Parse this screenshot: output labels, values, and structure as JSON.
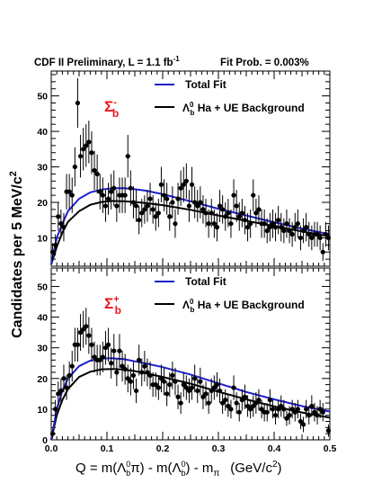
{
  "header": {
    "left": "CDF II Preliminary, L = 1.1 fb",
    "left_sup": "-1",
    "right": "Fit Prob. = 0.003%"
  },
  "axes": {
    "ylabel": "Candidates per 5 MeV/c",
    "ylabel_sup": "2",
    "xlabel": "Q = m(Λ₀ᵇπ) - m(Λ₀ᵇ) - m",
    "xlabel_pre": "Q = m(Λ",
    "xlabel_mid1": "π) - m(Λ",
    "xlabel_mid2": ") - m",
    "xlabel_sub_pi": "π",
    "xlabel_units": "(GeV/c",
    "xlabel_units_sup": "2",
    "xlabel_units_end": ")",
    "lambda_sub": "b",
    "lambda_sup": "0"
  },
  "colors": {
    "total_fit": "#1f1fcc",
    "background": "#000000",
    "signal_label": "#e8161b"
  },
  "chart_data": [
    {
      "type": "scatter",
      "panel": "top",
      "signal_label": "Σ",
      "signal_sub": "b",
      "signal_sup": "-",
      "legend": [
        "Total Fit",
        "Ha + UE Background"
      ],
      "xlim": [
        0,
        0.5
      ],
      "ylim": [
        2,
        57
      ],
      "yticks": [
        10,
        20,
        30,
        40,
        50
      ],
      "series": [
        {
          "name": "Data",
          "x": [
            0.0025,
            0.0075,
            0.0125,
            0.0175,
            0.0225,
            0.0275,
            0.0325,
            0.0375,
            0.0425,
            0.0475,
            0.0525,
            0.0575,
            0.0625,
            0.0675,
            0.0725,
            0.0775,
            0.0825,
            0.0875,
            0.0925,
            0.0975,
            0.1025,
            0.1075,
            0.1125,
            0.1175,
            0.1225,
            0.1275,
            0.1325,
            0.1375,
            0.1425,
            0.1475,
            0.1525,
            0.1575,
            0.1625,
            0.1675,
            0.1725,
            0.1775,
            0.1825,
            0.1875,
            0.1925,
            0.1975,
            0.2025,
            0.2075,
            0.2125,
            0.2175,
            0.2225,
            0.2275,
            0.2325,
            0.2375,
            0.2425,
            0.2475,
            0.2525,
            0.2575,
            0.2625,
            0.2675,
            0.2725,
            0.2775,
            0.2825,
            0.2875,
            0.2925,
            0.2975,
            0.3025,
            0.3075,
            0.3125,
            0.3175,
            0.3225,
            0.3275,
            0.3325,
            0.3375,
            0.3425,
            0.3475,
            0.3525,
            0.3575,
            0.3625,
            0.3675,
            0.3725,
            0.3775,
            0.3825,
            0.3875,
            0.3925,
            0.3975,
            0.4025,
            0.4075,
            0.4125,
            0.4175,
            0.4225,
            0.4275,
            0.4325,
            0.4375,
            0.4425,
            0.4475,
            0.4525,
            0.4575,
            0.4625,
            0.4675,
            0.4725,
            0.4775,
            0.4825,
            0.4875,
            0.4925,
            0.4975
          ],
          "y": [
            6,
            8,
            16,
            14,
            13,
            23,
            23,
            22,
            30,
            48,
            33,
            35,
            36,
            37,
            34,
            29,
            28,
            23,
            22,
            19,
            21,
            23,
            24,
            19,
            22,
            22,
            22,
            33,
            24,
            20,
            19,
            15,
            17,
            18,
            19,
            21,
            18,
            16,
            17,
            25,
            22,
            21,
            16,
            20,
            14,
            21,
            24,
            25,
            26,
            19,
            25,
            20,
            19,
            20,
            18,
            17,
            14,
            17,
            14,
            13,
            19,
            18,
            16,
            17,
            14,
            22,
            19,
            16,
            17,
            15,
            13,
            14,
            22,
            17,
            18,
            14,
            14,
            12,
            13,
            14,
            13,
            15,
            13,
            12,
            14,
            12,
            11,
            13,
            14,
            10,
            12,
            13,
            11,
            10,
            11,
            11,
            10,
            6,
            11,
            10
          ],
          "yerr": [
            2.5,
            3,
            4,
            4,
            4,
            5,
            5,
            5,
            5.5,
            7,
            6,
            6,
            6,
            6,
            6,
            5.5,
            5.5,
            5,
            5,
            4.5,
            4.5,
            5,
            5,
            4.5,
            5,
            5,
            5,
            6,
            5,
            4.5,
            4.5,
            4,
            4,
            4,
            4.5,
            4.5,
            4,
            4,
            4,
            5,
            4.5,
            4.5,
            4,
            4.5,
            4,
            4.5,
            5,
            5,
            5,
            4.5,
            5,
            4.5,
            4.5,
            4.5,
            4,
            4,
            4,
            4,
            4,
            4,
            4.5,
            4,
            4,
            4,
            4,
            4.5,
            4.5,
            4,
            4,
            4,
            4,
            4,
            4.5,
            4,
            4,
            4,
            4,
            3.5,
            4,
            4,
            4,
            4,
            4,
            3.5,
            4,
            3.5,
            3.5,
            4,
            4,
            3.5,
            3.5,
            4,
            3.5,
            3.5,
            3.5,
            3.5,
            3.5,
            2.5,
            3.5,
            3.5
          ]
        },
        {
          "name": "Total Fit",
          "x": [
            0,
            0.01,
            0.02,
            0.03,
            0.05,
            0.07,
            0.09,
            0.11,
            0.13,
            0.15,
            0.17,
            0.2,
            0.25,
            0.3,
            0.35,
            0.4,
            0.45,
            0.5
          ],
          "y": [
            2.5,
            10,
            14,
            17.5,
            21,
            22.8,
            23.6,
            24,
            24,
            23.7,
            23.3,
            22.3,
            20.3,
            18.2,
            16.3,
            14.4,
            12.6,
            11
          ]
        },
        {
          "name": "Ha + UE Background",
          "x": [
            0,
            0.01,
            0.02,
            0.03,
            0.05,
            0.07,
            0.09,
            0.11,
            0.13,
            0.15,
            0.17,
            0.2,
            0.25,
            0.3,
            0.35,
            0.4,
            0.45,
            0.5
          ],
          "y": [
            2.5,
            7.5,
            11.5,
            14.5,
            17.5,
            19.3,
            20.1,
            20.4,
            20.3,
            20.1,
            19.8,
            19.2,
            17.9,
            16.3,
            14.8,
            13.3,
            11.8,
            10.4
          ]
        }
      ]
    },
    {
      "type": "scatter",
      "panel": "bottom",
      "signal_label": "Σ",
      "signal_sub": "b",
      "signal_sup": "+",
      "legend": [
        "Total Fit",
        "Ha + UE Background"
      ],
      "xlim": [
        0,
        0.5
      ],
      "xticks": [
        "0.0",
        "0.1",
        "0.2",
        "0.3",
        "0.4",
        "0.5"
      ],
      "ylim": [
        0,
        56
      ],
      "yticks": [
        0,
        10,
        20,
        30,
        40,
        50
      ],
      "series": [
        {
          "name": "Data",
          "x": [
            0.0025,
            0.0075,
            0.0125,
            0.0175,
            0.0225,
            0.0275,
            0.0325,
            0.0375,
            0.0425,
            0.0475,
            0.0525,
            0.0575,
            0.0625,
            0.0675,
            0.0725,
            0.0775,
            0.0825,
            0.0875,
            0.0925,
            0.0975,
            0.1025,
            0.1075,
            0.1125,
            0.1175,
            0.1225,
            0.1275,
            0.1325,
            0.1375,
            0.1425,
            0.1475,
            0.1525,
            0.1575,
            0.1625,
            0.1675,
            0.1725,
            0.1775,
            0.1825,
            0.1875,
            0.1925,
            0.1975,
            0.2025,
            0.2075,
            0.2125,
            0.2175,
            0.2225,
            0.2275,
            0.2325,
            0.2375,
            0.2425,
            0.2475,
            0.2525,
            0.2575,
            0.2625,
            0.2675,
            0.2725,
            0.2775,
            0.2825,
            0.2875,
            0.2925,
            0.2975,
            0.3025,
            0.3075,
            0.3125,
            0.3175,
            0.3225,
            0.3275,
            0.3325,
            0.3375,
            0.3425,
            0.3475,
            0.3525,
            0.3575,
            0.3625,
            0.3675,
            0.3725,
            0.3775,
            0.3825,
            0.3875,
            0.3925,
            0.3975,
            0.4025,
            0.4075,
            0.4125,
            0.4175,
            0.4225,
            0.4275,
            0.4325,
            0.4375,
            0.4425,
            0.4475,
            0.4525,
            0.4575,
            0.4625,
            0.4675,
            0.4725,
            0.4775,
            0.4825,
            0.4875,
            0.4975
          ],
          "y": [
            2,
            10,
            15,
            16,
            20,
            17,
            21,
            24,
            31,
            31,
            35,
            36,
            37,
            34,
            31,
            27,
            26,
            26,
            27,
            30,
            31,
            25,
            29,
            22,
            29,
            24,
            23,
            20,
            19,
            21,
            16,
            26,
            22,
            24,
            22,
            21,
            18,
            18,
            17,
            20,
            19,
            15,
            18,
            21,
            19,
            14,
            12,
            18,
            17,
            16,
            17,
            20,
            16,
            19,
            14,
            15,
            12,
            16,
            17,
            18,
            16,
            12,
            13,
            11,
            10,
            17,
            12,
            9,
            13,
            14,
            11,
            10,
            11,
            12,
            13,
            10,
            9,
            9,
            13,
            10,
            8,
            10,
            11,
            10,
            7,
            8,
            10,
            9,
            10,
            6,
            5,
            10,
            8,
            11,
            9,
            8,
            10,
            9,
            3
          ],
          "yerr": [
            1.5,
            3,
            4,
            4,
            4.5,
            4,
            4.5,
            5,
            5.5,
            5.5,
            6,
            6,
            6,
            6,
            5.5,
            5,
            5,
            5,
            5,
            5.5,
            5.5,
            5,
            5.5,
            4.5,
            5.5,
            5,
            5,
            4.5,
            4.5,
            4.5,
            4,
            5,
            4.5,
            5,
            4.5,
            4.5,
            4,
            4,
            4,
            4.5,
            4.5,
            4,
            4,
            4.5,
            4.5,
            4,
            3.5,
            4,
            4,
            4,
            4,
            4.5,
            4,
            4.5,
            4,
            4,
            3.5,
            4,
            4,
            4,
            4,
            3.5,
            3.5,
            3.5,
            3,
            4,
            3.5,
            3,
            3.5,
            4,
            3.5,
            3,
            3.5,
            3.5,
            3.5,
            3,
            3,
            3,
            3.5,
            3,
            3,
            3,
            3.5,
            3,
            2.5,
            3,
            3,
            3,
            3,
            2.5,
            2.5,
            3,
            3,
            3.5,
            3,
            3,
            3,
            3,
            2
          ]
        },
        {
          "name": "Total Fit",
          "x": [
            0,
            0.01,
            0.02,
            0.03,
            0.05,
            0.07,
            0.09,
            0.11,
            0.13,
            0.15,
            0.17,
            0.2,
            0.25,
            0.3,
            0.35,
            0.4,
            0.45,
            0.5
          ],
          "y": [
            0,
            10,
            16,
            20,
            24,
            25.8,
            26.5,
            26.6,
            26.3,
            25.6,
            24.9,
            23.7,
            21.3,
            18.4,
            15.6,
            13.2,
            11,
            9.2
          ]
        },
        {
          "name": "Ha + UE Background",
          "x": [
            0,
            0.01,
            0.02,
            0.03,
            0.05,
            0.07,
            0.09,
            0.11,
            0.13,
            0.15,
            0.17,
            0.2,
            0.25,
            0.3,
            0.35,
            0.4,
            0.45,
            0.5
          ],
          "y": [
            0,
            8,
            13,
            16.5,
            20.5,
            22.2,
            23,
            23.1,
            22.9,
            22.4,
            21.7,
            20.5,
            18.3,
            15.7,
            13.2,
            10.9,
            8.9,
            7.2
          ]
        }
      ]
    }
  ]
}
